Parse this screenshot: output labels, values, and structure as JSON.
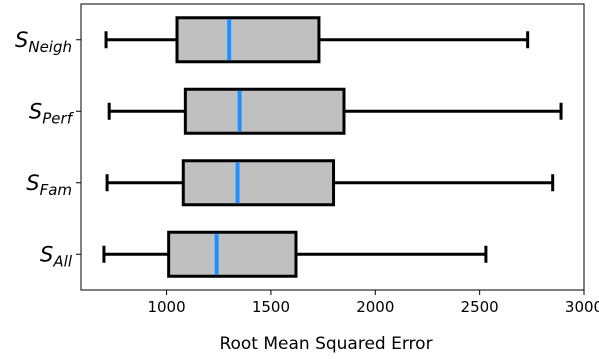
{
  "chart_data": {
    "type": "boxplot",
    "orientation": "horizontal",
    "title": "",
    "xlabel": "Root Mean Squared Error",
    "ylabel": "",
    "xlim": [
      590,
      3000
    ],
    "xticks": [
      1000,
      1500,
      2000,
      2500,
      3000
    ],
    "xtick_labels": [
      "1000",
      "1500",
      "2000",
      "2500",
      "3000"
    ],
    "grid": false,
    "colors": {
      "box_fill": "#c0c0c0",
      "median": "#1e90ff",
      "line": "#000000"
    },
    "categories": [
      {
        "label_main": "S",
        "label_sub": "Neigh",
        "whisker_low": 710,
        "q1": 1050,
        "median": 1300,
        "q3": 1730,
        "whisker_high": 2730
      },
      {
        "label_main": "S",
        "label_sub": "Perf",
        "whisker_low": 725,
        "q1": 1090,
        "median": 1350,
        "q3": 1850,
        "whisker_high": 2890
      },
      {
        "label_main": "S",
        "label_sub": "Fam",
        "whisker_low": 715,
        "q1": 1080,
        "median": 1340,
        "q3": 1800,
        "whisker_high": 2850
      },
      {
        "label_main": "S",
        "label_sub": "All",
        "whisker_low": 700,
        "q1": 1010,
        "median": 1240,
        "q3": 1620,
        "whisker_high": 2530
      }
    ]
  }
}
